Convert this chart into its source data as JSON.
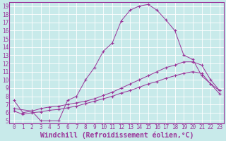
{
  "title": "",
  "xlabel": "Windchill (Refroidissement éolien,°C)",
  "bg_color": "#c8eaea",
  "line_color": "#993399",
  "grid_color": "#ffffff",
  "xlim": [
    -0.5,
    23.5
  ],
  "ylim": [
    4.7,
    19.5
  ],
  "yticks": [
    5,
    6,
    7,
    8,
    9,
    10,
    11,
    12,
    13,
    14,
    15,
    16,
    17,
    18,
    19
  ],
  "xticks": [
    0,
    1,
    2,
    3,
    4,
    5,
    6,
    7,
    8,
    9,
    10,
    11,
    12,
    13,
    14,
    15,
    16,
    17,
    18,
    19,
    20,
    21,
    22,
    23
  ],
  "line1_x": [
    0,
    1,
    2,
    3,
    4,
    5,
    6,
    7,
    8,
    9,
    10,
    11,
    12,
    13,
    14,
    15,
    16,
    17,
    18,
    19,
    20,
    21,
    22,
    23
  ],
  "line1_y": [
    7.5,
    6.0,
    6.2,
    5.0,
    5.0,
    5.0,
    7.5,
    8.0,
    10.0,
    11.5,
    13.5,
    14.5,
    17.2,
    18.5,
    19.0,
    19.2,
    18.5,
    17.3,
    16.0,
    13.0,
    12.5,
    10.5,
    9.5,
    8.7
  ],
  "line2_x": [
    0,
    2,
    3,
    4,
    5,
    6,
    7,
    8,
    9,
    10,
    11,
    12,
    13,
    14,
    15,
    16,
    17,
    18,
    19,
    20,
    21,
    22,
    23
  ],
  "line2_y": [
    6.5,
    6.2,
    6.5,
    6.7,
    6.8,
    7.0,
    7.2,
    7.4,
    7.7,
    8.1,
    8.5,
    9.0,
    9.5,
    10.0,
    10.5,
    11.0,
    11.5,
    11.8,
    12.2,
    12.2,
    11.8,
    10.0,
    8.7
  ],
  "line3_x": [
    0,
    1,
    2,
    3,
    4,
    5,
    6,
    7,
    8,
    9,
    10,
    11,
    12,
    13,
    14,
    15,
    16,
    17,
    18,
    19,
    20,
    21,
    22,
    23
  ],
  "line3_y": [
    6.2,
    5.8,
    6.0,
    6.1,
    6.3,
    6.4,
    6.6,
    6.8,
    7.1,
    7.4,
    7.7,
    8.0,
    8.4,
    8.7,
    9.1,
    9.5,
    9.8,
    10.2,
    10.5,
    10.8,
    11.0,
    10.8,
    9.5,
    8.3
  ],
  "tick_fontsize": 5.5,
  "label_fontsize": 7.0
}
